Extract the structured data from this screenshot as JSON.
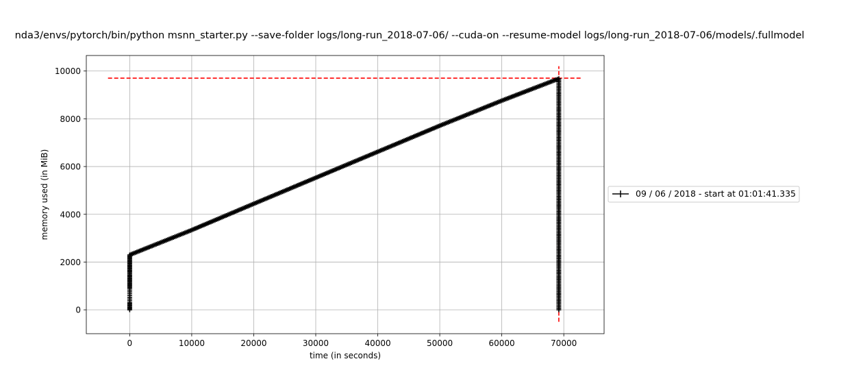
{
  "chart_data": {
    "type": "line",
    "title": "nda3/envs/pytorch/bin/python msnn_starter.py --save-folder logs/long-run_2018-07-06/ --cuda-on --resume-model logs/long-run_2018-07-06/models/.fullmodel",
    "xlabel": "time (in seconds)",
    "ylabel": "memory used (in MiB)",
    "xlim": [
      -7000,
      76500
    ],
    "ylim": [
      -1000,
      10650
    ],
    "xticks": [
      0,
      10000,
      20000,
      30000,
      40000,
      50000,
      60000,
      70000
    ],
    "yticks": [
      0,
      2000,
      4000,
      6000,
      8000,
      10000
    ],
    "xtick_labels": [
      "0",
      "10000",
      "20000",
      "30000",
      "40000",
      "50000",
      "60000",
      "70000"
    ],
    "ytick_labels": [
      "0",
      "2000",
      "4000",
      "6000",
      "8000",
      "10000"
    ],
    "grid": true,
    "legend_position": "right, outside plot",
    "series": [
      {
        "name": "09 / 06 / 2018 - start at 01:01:41.335",
        "color": "#000000",
        "marker": "+",
        "x": [
          0,
          0,
          0,
          0,
          0,
          0,
          0,
          0,
          0,
          0,
          0,
          0,
          0,
          0,
          0,
          0,
          0,
          0,
          0,
          0,
          0,
          0,
          0,
          0,
          0,
          0,
          0,
          10000,
          20000,
          30000,
          40000,
          50000,
          60000,
          69200,
          69200
        ],
        "y": [
          0,
          100,
          200,
          300,
          450,
          600,
          750,
          900,
          1000,
          1100,
          1200,
          1300,
          1400,
          1500,
          1600,
          1700,
          1800,
          1850,
          1900,
          1950,
          2000,
          2050,
          2100,
          2150,
          2200,
          2250,
          2300,
          3340,
          4440,
          5530,
          6620,
          7710,
          8760,
          9680,
          0
        ]
      }
    ],
    "reference_lines": [
      {
        "orientation": "horizontal",
        "value": 9700,
        "x_range": [
          -3500,
          72800
        ],
        "color": "#ff0000",
        "style": "dashed"
      },
      {
        "orientation": "vertical",
        "value": 69200,
        "y_range": [
          -500,
          10200
        ],
        "color": "#ff0000",
        "style": "dashed"
      }
    ]
  },
  "colors": {
    "series": "#000000",
    "reference": "#ff0000",
    "grid": "#b0b0b0"
  }
}
